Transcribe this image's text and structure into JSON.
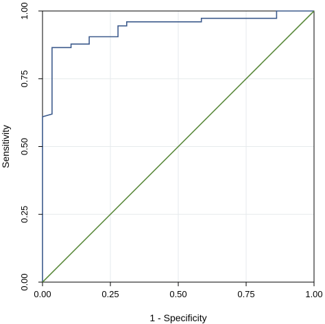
{
  "chart_data": {
    "type": "line",
    "title": "",
    "xlabel": "1 - Specificity",
    "ylabel": "Sensitivity",
    "xlim": [
      0,
      1
    ],
    "ylim": [
      0,
      1
    ],
    "grid": true,
    "x_ticks": [
      {
        "value": 0,
        "label": "0.00"
      },
      {
        "value": 0.25,
        "label": "0.25"
      },
      {
        "value": 0.5,
        "label": "0.50"
      },
      {
        "value": 0.75,
        "label": "0.75"
      },
      {
        "value": 1,
        "label": "1.00"
      }
    ],
    "y_ticks": [
      {
        "value": 0,
        "label": "0.00"
      },
      {
        "value": 0.25,
        "label": "0.25"
      },
      {
        "value": 0.5,
        "label": "0.50"
      },
      {
        "value": 0.75,
        "label": "0.75"
      },
      {
        "value": 1,
        "label": "1.00"
      }
    ],
    "series": [
      {
        "color": "#3c5a8c",
        "style": "step",
        "points": [
          [
            0,
            0
          ],
          [
            0,
            0.61
          ],
          [
            0.035,
            0.62
          ],
          [
            0.035,
            0.865
          ],
          [
            0.105,
            0.865
          ],
          [
            0.105,
            0.878
          ],
          [
            0.172,
            0.878
          ],
          [
            0.172,
            0.905
          ],
          [
            0.278,
            0.905
          ],
          [
            0.278,
            0.945
          ],
          [
            0.31,
            0.945
          ],
          [
            0.31,
            0.96
          ],
          [
            0.585,
            0.96
          ],
          [
            0.585,
            0.973
          ],
          [
            0.862,
            0.973
          ],
          [
            0.862,
            1
          ],
          [
            1,
            1
          ]
        ]
      },
      {
        "color": "#5b8a3c",
        "style": "line",
        "points": [
          [
            0,
            0
          ],
          [
            1,
            1
          ]
        ]
      }
    ]
  }
}
